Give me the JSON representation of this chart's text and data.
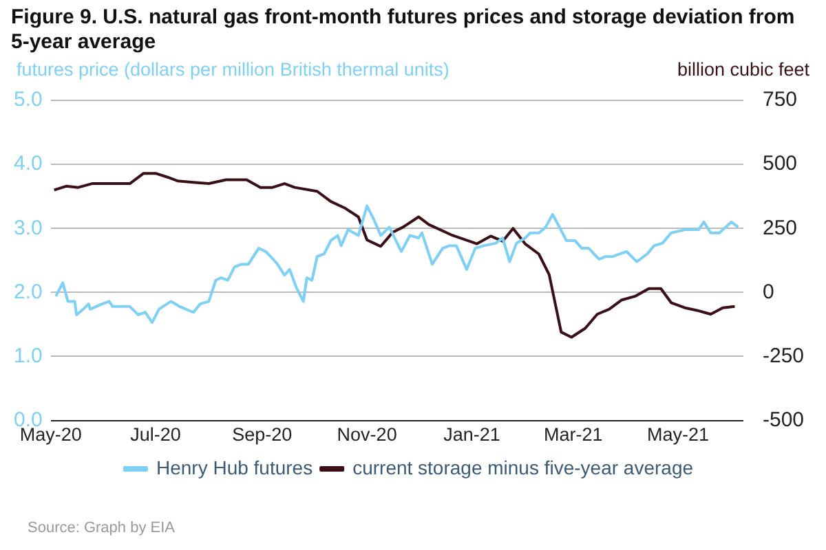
{
  "chart_data": {
    "type": "line",
    "title": "Figure 9. U.S. natural gas front-month futures prices and storage deviation from 5-year average",
    "ylabel": "futures price (dollars per million British thermal units)",
    "y2label": "billion cubic feet",
    "xlim": [
      "2020-05-01",
      "2021-06-08"
    ],
    "xticks": [
      {
        "value": "2020-05-01",
        "label": "May-20"
      },
      {
        "value": "2020-07-01",
        "label": "Jul-20"
      },
      {
        "value": "2020-09-01",
        "label": "Sep-20"
      },
      {
        "value": "2020-11-01",
        "label": "Nov-20"
      },
      {
        "value": "2021-01-01",
        "label": "Jan-21"
      },
      {
        "value": "2021-03-01",
        "label": "Mar-21"
      },
      {
        "value": "2021-05-01",
        "label": "May-21"
      }
    ],
    "ylim": [
      0,
      5
    ],
    "yticks": [
      {
        "value": 0,
        "label": "0.0"
      },
      {
        "value": 1,
        "label": "1.0"
      },
      {
        "value": 2,
        "label": "2.0"
      },
      {
        "value": 3,
        "label": "3.0"
      },
      {
        "value": 4,
        "label": "4.0"
      },
      {
        "value": 5,
        "label": "5.0"
      }
    ],
    "y2lim": [
      -500,
      750
    ],
    "y2ticks": [
      -500,
      -250,
      0,
      250,
      500,
      750
    ],
    "grid": "y",
    "legend": "bottom",
    "marker": "none",
    "line_style": "solid",
    "series": [
      {
        "name": "Henry Hub futures",
        "color": "#7fd0f5",
        "x": [
          "2020-05-04",
          "2020-05-08",
          "2020-05-11",
          "2020-05-15",
          "2020-05-16",
          "2020-05-20",
          "2020-05-23",
          "2020-05-24",
          "2020-05-31",
          "2020-06-04",
          "2020-06-06",
          "2020-06-16",
          "2020-06-21",
          "2020-06-25",
          "2020-06-29",
          "2020-07-03",
          "2020-07-10",
          "2020-07-15",
          "2020-07-23",
          "2020-07-27",
          "2020-08-01",
          "2020-08-05",
          "2020-08-08",
          "2020-08-12",
          "2020-08-16",
          "2020-08-20",
          "2020-08-24",
          "2020-08-30",
          "2020-09-03",
          "2020-09-06",
          "2020-09-10",
          "2020-09-14",
          "2020-09-17",
          "2020-09-21",
          "2020-09-25",
          "2020-09-27",
          "2020-09-30",
          "2020-10-03",
          "2020-10-07",
          "2020-10-11",
          "2020-10-15",
          "2020-10-17",
          "2020-10-21",
          "2020-10-27",
          "2020-11-01",
          "2020-11-05",
          "2020-11-09",
          "2020-11-14",
          "2020-11-21",
          "2020-11-26",
          "2020-12-01",
          "2020-12-03",
          "2020-12-09",
          "2020-12-15",
          "2020-12-19",
          "2020-12-23",
          "2020-12-29",
          "2021-01-03",
          "2021-01-08",
          "2021-01-15",
          "2021-01-19",
          "2021-01-23",
          "2021-01-27",
          "2021-02-01",
          "2021-02-04",
          "2021-02-09",
          "2021-02-13",
          "2021-02-17",
          "2021-02-21",
          "2021-02-25",
          "2021-03-02",
          "2021-03-06",
          "2021-03-10",
          "2021-03-16",
          "2021-03-20",
          "2021-03-24",
          "2021-04-01",
          "2021-04-07",
          "2021-04-13",
          "2021-04-17",
          "2021-04-22",
          "2021-04-27",
          "2021-05-05",
          "2021-05-13",
          "2021-05-16",
          "2021-05-20",
          "2021-05-25",
          "2021-06-01",
          "2021-06-05"
        ],
        "values": [
          1.94,
          2.15,
          1.86,
          1.86,
          1.65,
          1.74,
          1.82,
          1.74,
          1.82,
          1.86,
          1.78,
          1.78,
          1.65,
          1.69,
          1.53,
          1.74,
          1.86,
          1.78,
          1.69,
          1.82,
          1.86,
          2.19,
          2.23,
          2.19,
          2.4,
          2.44,
          2.44,
          2.69,
          2.64,
          2.56,
          2.44,
          2.27,
          2.36,
          2.07,
          1.86,
          2.23,
          2.19,
          2.56,
          2.6,
          2.81,
          2.89,
          2.73,
          2.98,
          2.89,
          3.35,
          3.14,
          2.89,
          3.02,
          2.64,
          2.89,
          2.85,
          2.93,
          2.44,
          2.69,
          2.73,
          2.73,
          2.36,
          2.69,
          2.73,
          2.77,
          2.85,
          2.48,
          2.77,
          2.85,
          2.93,
          2.93,
          3.02,
          3.22,
          3.02,
          2.81,
          2.81,
          2.69,
          2.69,
          2.52,
          2.56,
          2.56,
          2.64,
          2.48,
          2.6,
          2.73,
          2.77,
          2.93,
          2.98,
          2.98,
          3.1,
          2.93,
          2.93,
          3.1,
          3.02
        ]
      },
      {
        "name": "current storage minus five-year average",
        "color": "#3b0f16",
        "axis": "y2",
        "x": [
          "2020-05-03",
          "2020-05-10",
          "2020-05-17",
          "2020-05-25",
          "2020-06-02",
          "2020-06-16",
          "2020-06-24",
          "2020-07-01",
          "2020-07-08",
          "2020-07-14",
          "2020-07-23",
          "2020-08-01",
          "2020-08-11",
          "2020-08-23",
          "2020-08-31",
          "2020-09-07",
          "2020-09-14",
          "2020-09-20",
          "2020-10-03",
          "2020-10-11",
          "2020-10-19",
          "2020-10-27",
          "2020-11-01",
          "2020-11-09",
          "2020-11-16",
          "2020-11-22",
          "2020-12-01",
          "2020-12-07",
          "2020-12-20",
          "2021-01-04",
          "2021-01-12",
          "2021-01-19",
          "2021-01-25",
          "2021-02-01",
          "2021-02-09",
          "2021-02-15",
          "2021-02-22",
          "2021-02-28",
          "2021-03-08",
          "2021-03-15",
          "2021-03-22",
          "2021-03-29",
          "2021-04-06",
          "2021-04-14",
          "2021-04-21",
          "2021-04-27",
          "2021-05-05",
          "2021-05-12",
          "2021-05-20",
          "2021-05-27",
          "2021-06-03"
        ],
        "values": [
          400,
          415,
          410,
          425,
          425,
          425,
          465,
          465,
          450,
          435,
          430,
          425,
          440,
          440,
          410,
          410,
          425,
          410,
          395,
          355,
          330,
          295,
          205,
          180,
          235,
          255,
          295,
          265,
          225,
          190,
          220,
          200,
          250,
          190,
          150,
          70,
          -155,
          -175,
          -140,
          -85,
          -65,
          -30,
          -15,
          15,
          15,
          -40,
          -60,
          -70,
          -85,
          -60,
          -55
        ]
      }
    ],
    "annotations": [
      "Source: Graph by EIA"
    ]
  }
}
